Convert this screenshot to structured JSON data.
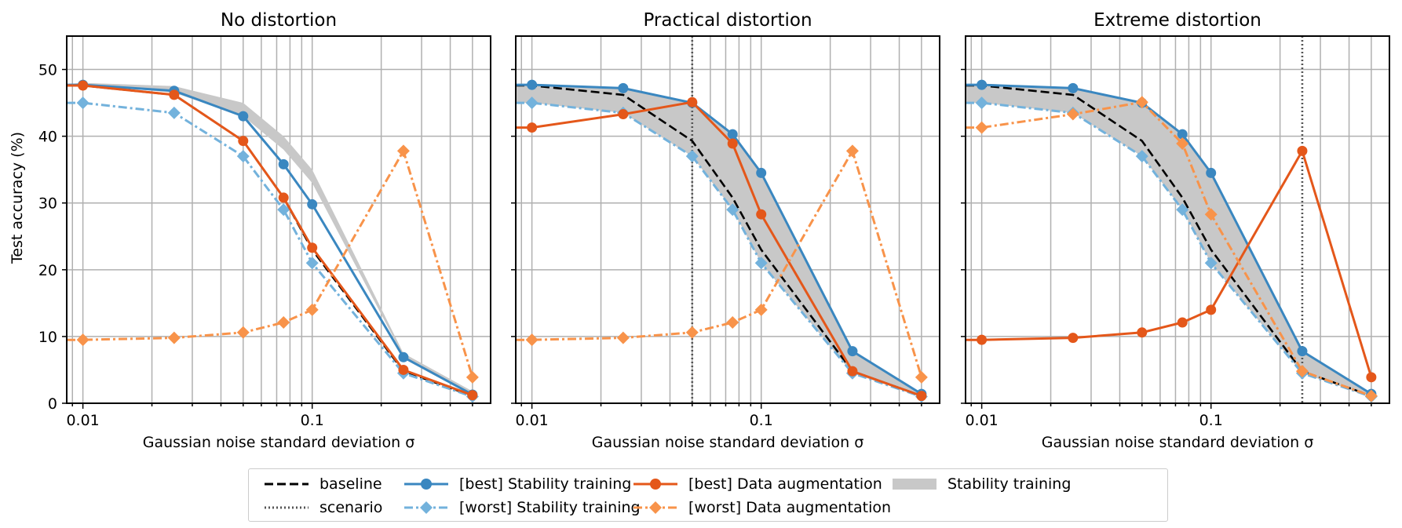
{
  "ylabel": "Test accuracy (%)",
  "xlabel": "Gaussian noise standard deviation σ",
  "xticks": [
    "0.01",
    "0.1"
  ],
  "yticks": [
    "0",
    "10",
    "20",
    "30",
    "40",
    "50"
  ],
  "colors": {
    "baseline": "#000000",
    "scenario": "#555555",
    "stab_best": "#3a87c0",
    "stab_worst": "#73b2dc",
    "aug_best": "#e4571a",
    "aug_worst": "#f8934a",
    "band": "#c8c8c8"
  },
  "legend": {
    "baseline": "baseline",
    "scenario": "scenario",
    "stab_best": "[best] Stability training",
    "stab_worst": "[worst] Stability training",
    "aug_best": "[best] Data augmentation",
    "aug_worst": "[worst] Data augmentation",
    "band": "Stability training"
  },
  "chart_data": [
    {
      "type": "line",
      "title": "No distortion",
      "xscale": "log",
      "xlim": [
        0.0085,
        0.6
      ],
      "ylim": [
        0,
        55
      ],
      "grid": true,
      "scenario_x": null,
      "band": {
        "x": [
          0.0085,
          0.01,
          0.025,
          0.05,
          0.075,
          0.1,
          0.25,
          0.5
        ],
        "lower": [
          47.5,
          47.8,
          46.5,
          43.0,
          38.0,
          33.0,
          7.0,
          1.5
        ],
        "upper": [
          47.8,
          48.0,
          47.5,
          45.0,
          40.0,
          35.0,
          7.5,
          1.8
        ]
      },
      "series": [
        {
          "name": "baseline",
          "style": "dashed",
          "marker": "none",
          "x": [
            0.0085,
            0.01,
            0.025,
            0.05,
            0.075,
            0.1,
            0.25,
            0.5
          ],
          "y": [
            47.6,
            47.6,
            46.2,
            39.3,
            30.8,
            23.0,
            4.8,
            1.1
          ]
        },
        {
          "name": "[best] Stability training",
          "style": "solid",
          "marker": "circle",
          "x": [
            0.0085,
            0.01,
            0.025,
            0.05,
            0.075,
            0.1,
            0.25,
            0.5
          ],
          "y": [
            47.7,
            47.7,
            46.8,
            43.0,
            35.8,
            29.8,
            6.9,
            1.3
          ]
        },
        {
          "name": "[worst] Stability training",
          "style": "dashdot",
          "marker": "diamond",
          "x": [
            0.0085,
            0.01,
            0.025,
            0.05,
            0.075,
            0.1,
            0.25,
            0.5
          ],
          "y": [
            45.0,
            45.0,
            43.5,
            37.0,
            29.0,
            21.0,
            4.5,
            1.0
          ]
        },
        {
          "name": "[best] Data augmentation",
          "style": "solid",
          "marker": "circle",
          "x": [
            0.0085,
            0.01,
            0.025,
            0.05,
            0.075,
            0.1,
            0.25,
            0.5
          ],
          "y": [
            47.6,
            47.6,
            46.2,
            39.3,
            30.8,
            23.3,
            5.0,
            1.2
          ]
        },
        {
          "name": "[worst] Data augmentation",
          "style": "dashdot",
          "marker": "diamond",
          "x": [
            0.0085,
            0.01,
            0.025,
            0.05,
            0.075,
            0.1,
            0.25,
            0.5
          ],
          "y": [
            9.5,
            9.5,
            9.8,
            10.6,
            12.1,
            14.0,
            37.8,
            3.9
          ]
        }
      ]
    },
    {
      "type": "line",
      "title": "Practical distortion",
      "xscale": "log",
      "xlim": [
        0.0085,
        0.6
      ],
      "ylim": [
        0,
        55
      ],
      "grid": true,
      "scenario_x": 0.05,
      "band": {
        "x": [
          0.0085,
          0.01,
          0.025,
          0.05,
          0.075,
          0.1,
          0.25,
          0.5
        ],
        "lower": [
          45.0,
          45.0,
          43.5,
          37.0,
          29.0,
          21.0,
          4.5,
          1.0
        ],
        "upper": [
          47.7,
          47.7,
          47.2,
          45.0,
          40.3,
          34.5,
          7.8,
          1.4
        ]
      },
      "series": [
        {
          "name": "baseline",
          "style": "dashed",
          "marker": "none",
          "x": [
            0.0085,
            0.01,
            0.025,
            0.05,
            0.075,
            0.1,
            0.25,
            0.5
          ],
          "y": [
            47.6,
            47.6,
            46.2,
            39.3,
            30.8,
            23.0,
            4.8,
            1.1
          ]
        },
        {
          "name": "[best] Stability training",
          "style": "solid",
          "marker": "circle",
          "x": [
            0.0085,
            0.01,
            0.025,
            0.05,
            0.075,
            0.1,
            0.25,
            0.5
          ],
          "y": [
            47.7,
            47.7,
            47.2,
            45.0,
            40.3,
            34.5,
            7.8,
            1.4
          ]
        },
        {
          "name": "[worst] Stability training",
          "style": "dashdot",
          "marker": "diamond",
          "x": [
            0.0085,
            0.01,
            0.025,
            0.05,
            0.075,
            0.1,
            0.25,
            0.5
          ],
          "y": [
            45.0,
            45.0,
            43.5,
            37.0,
            29.0,
            21.0,
            4.5,
            1.0
          ]
        },
        {
          "name": "[best] Data augmentation",
          "style": "solid",
          "marker": "circle",
          "x": [
            0.0085,
            0.01,
            0.025,
            0.05,
            0.075,
            0.1,
            0.25,
            0.5
          ],
          "y": [
            41.3,
            41.3,
            43.3,
            45.1,
            38.9,
            28.3,
            4.8,
            1.1
          ]
        },
        {
          "name": "[worst] Data augmentation",
          "style": "dashdot",
          "marker": "diamond",
          "x": [
            0.0085,
            0.01,
            0.025,
            0.05,
            0.075,
            0.1,
            0.25,
            0.5
          ],
          "y": [
            9.5,
            9.5,
            9.8,
            10.6,
            12.1,
            14.0,
            37.8,
            3.9
          ]
        }
      ]
    },
    {
      "type": "line",
      "title": "Extreme distortion",
      "xscale": "log",
      "xlim": [
        0.0085,
        0.6
      ],
      "ylim": [
        0,
        55
      ],
      "grid": true,
      "scenario_x": 0.25,
      "band": {
        "x": [
          0.0085,
          0.01,
          0.025,
          0.05,
          0.075,
          0.1,
          0.25,
          0.5
        ],
        "lower": [
          45.0,
          45.0,
          43.5,
          37.0,
          29.0,
          21.0,
          4.5,
          1.0
        ],
        "upper": [
          47.7,
          47.7,
          47.2,
          45.0,
          40.3,
          34.5,
          7.8,
          1.4
        ]
      },
      "series": [
        {
          "name": "baseline",
          "style": "dashed",
          "marker": "none",
          "x": [
            0.0085,
            0.01,
            0.025,
            0.05,
            0.075,
            0.1,
            0.25,
            0.5
          ],
          "y": [
            47.6,
            47.6,
            46.2,
            39.3,
            30.8,
            23.0,
            4.8,
            1.1
          ]
        },
        {
          "name": "[best] Stability training",
          "style": "solid",
          "marker": "circle",
          "x": [
            0.0085,
            0.01,
            0.025,
            0.05,
            0.075,
            0.1,
            0.25,
            0.5
          ],
          "y": [
            47.7,
            47.7,
            47.2,
            45.0,
            40.3,
            34.5,
            7.8,
            1.4
          ]
        },
        {
          "name": "[worst] Stability training",
          "style": "dashdot",
          "marker": "diamond",
          "x": [
            0.0085,
            0.01,
            0.025,
            0.05,
            0.075,
            0.1,
            0.25,
            0.5
          ],
          "y": [
            45.0,
            45.0,
            43.5,
            37.0,
            29.0,
            21.0,
            4.5,
            1.0
          ]
        },
        {
          "name": "[best] Data augmentation",
          "style": "solid",
          "marker": "circle",
          "x": [
            0.0085,
            0.01,
            0.025,
            0.05,
            0.075,
            0.1,
            0.25,
            0.5
          ],
          "y": [
            9.5,
            9.5,
            9.8,
            10.6,
            12.1,
            14.0,
            37.8,
            3.9
          ]
        },
        {
          "name": "[worst] Data augmentation",
          "style": "dashdot",
          "marker": "diamond",
          "x": [
            0.0085,
            0.01,
            0.025,
            0.05,
            0.075,
            0.1,
            0.25,
            0.5
          ],
          "y": [
            41.3,
            41.3,
            43.3,
            45.1,
            38.9,
            28.3,
            4.8,
            1.1
          ]
        }
      ]
    }
  ]
}
